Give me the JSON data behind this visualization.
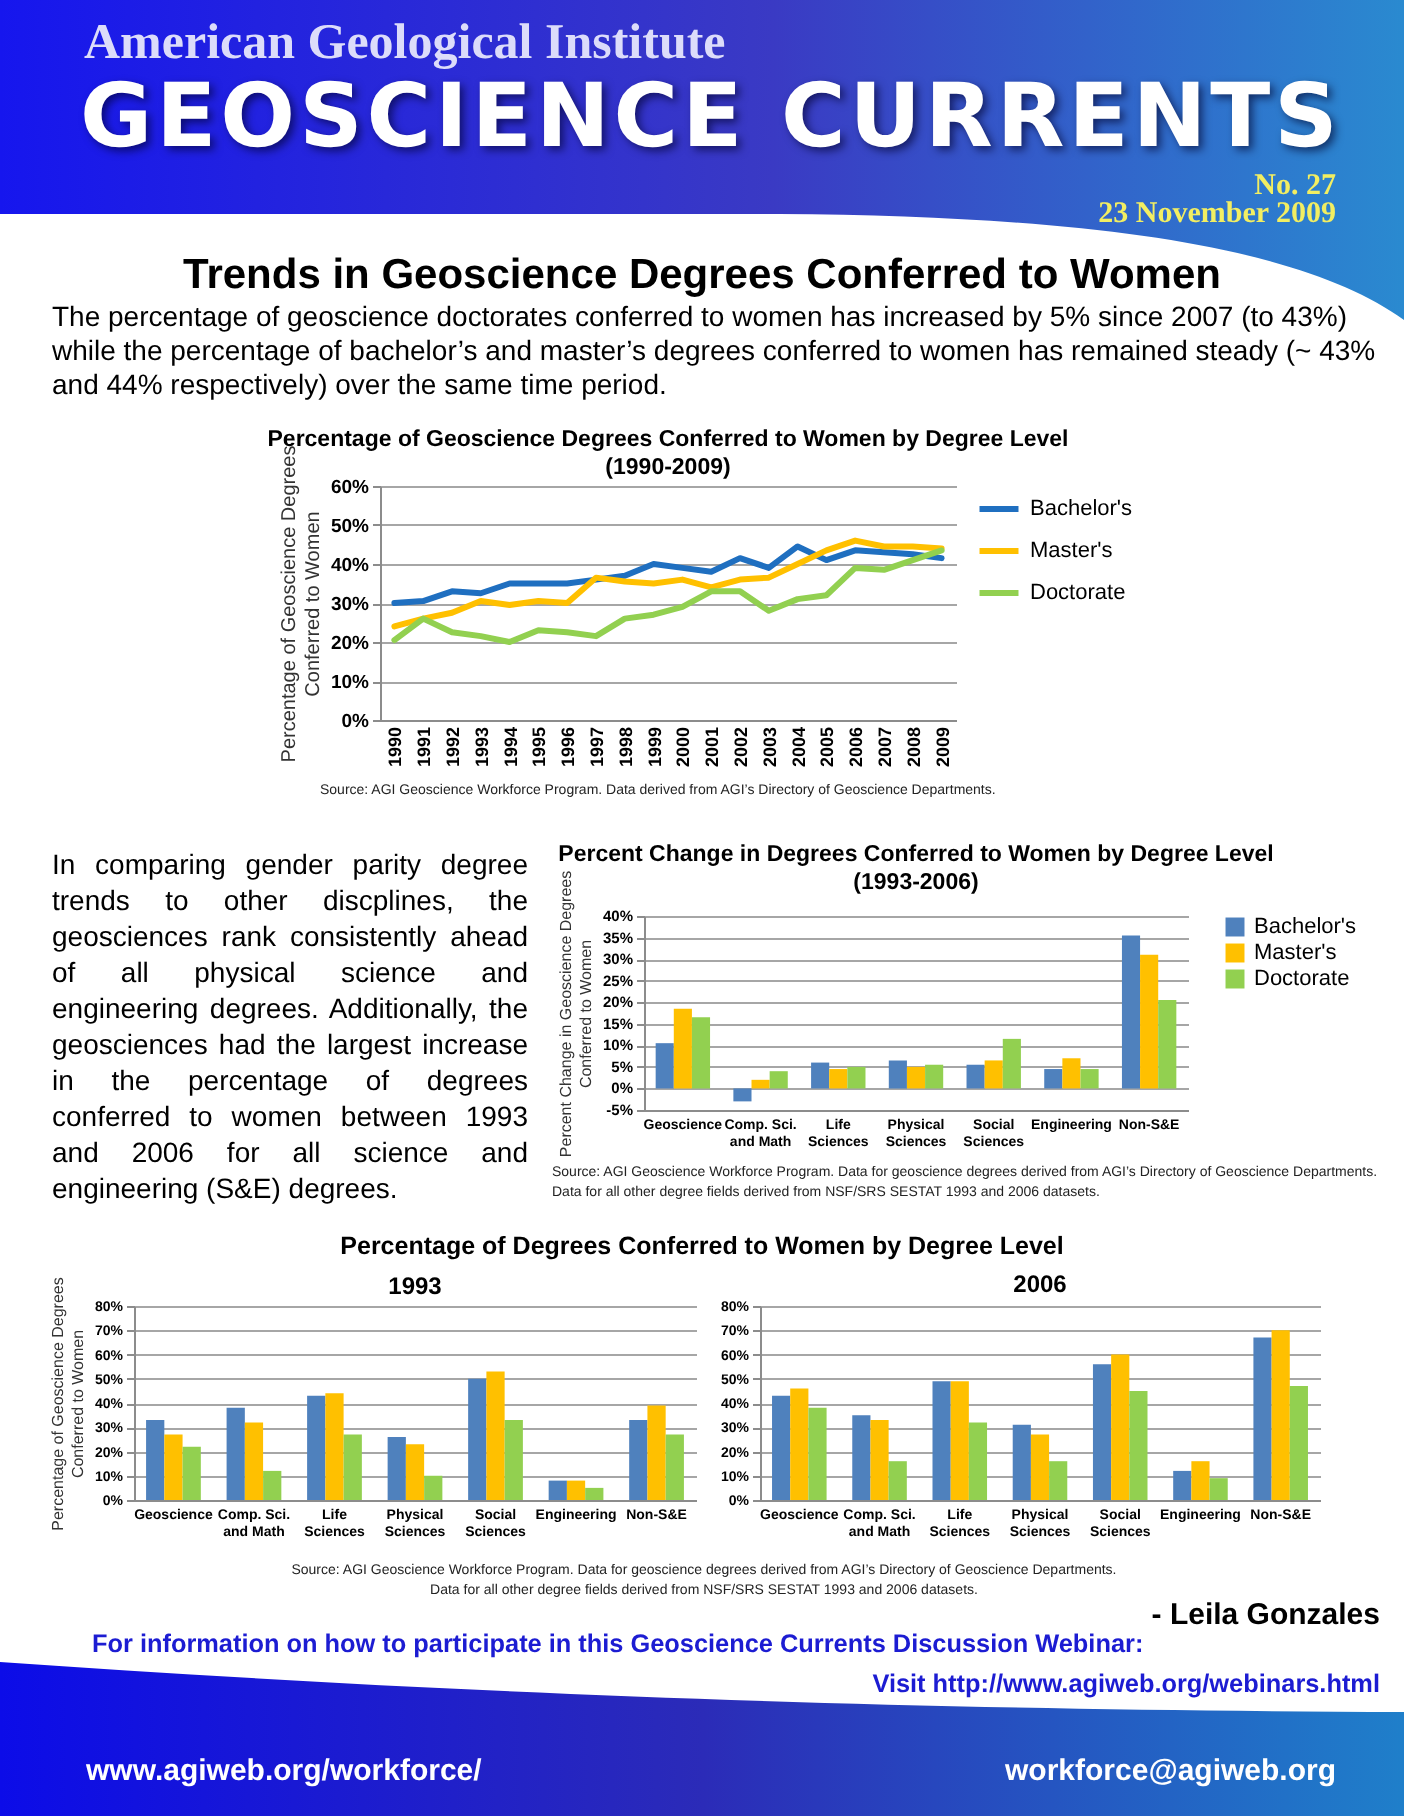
{
  "chart_data": [
    {
      "type": "other",
      "title": "Trends in Geoscience Degrees Conferred to Women",
      "annotations": [
        "American Geological Institute",
        "GEOSCIENCE CURRENTS",
        "No. 27",
        "23 November 2009",
        "The percentage of geoscience doctorates conferred to women has increased by 5% since 2007 (to 43%) while the percentage of bachelor’s and master’s degrees conferred to women has remained steady (~ 43% and 44% respectively) over the same time period."
      ]
    },
    {
      "type": "line",
      "title": "Percentage of Geoscience Degrees Conferred to Women by Degree Level (1990-2009)",
      "ylabel": "Percentage of Geoscience Degrees Conferred to Women",
      "categories": [
        "1990",
        "1991",
        "1992",
        "1993",
        "1994",
        "1995",
        "1996",
        "1997",
        "1998",
        "1999",
        "2000",
        "2001",
        "2002",
        "2003",
        "2004",
        "2005",
        "2006",
        "2007",
        "2008",
        "2009"
      ],
      "series": [
        {
          "name": "Bachelor's",
          "color": "#1f6fc0",
          "values": [
            30,
            30.5,
            33,
            32.5,
            35,
            35,
            35,
            36,
            37,
            40,
            39,
            38,
            41.5,
            39,
            44.5,
            41,
            43.5,
            43,
            42.5,
            41.5
          ]
        },
        {
          "name": "Master's",
          "color": "#ffc000",
          "values": [
            24,
            26,
            27.5,
            30.5,
            29.5,
            30.5,
            30,
            36.5,
            35.5,
            35,
            36,
            34,
            36,
            36.5,
            40,
            43.5,
            46,
            44.5,
            44.5,
            44
          ]
        },
        {
          "name": "Doctorate",
          "color": "#92d050",
          "values": [
            20.5,
            26,
            22.5,
            21.5,
            20,
            23,
            22.5,
            21.5,
            26,
            27,
            29,
            33,
            33,
            28,
            31,
            32,
            39,
            38.5,
            41,
            43.5
          ]
        }
      ],
      "ylim": [
        0,
        60
      ],
      "yticks": [
        {
          "value": 0,
          "label": "0%"
        },
        {
          "value": 10,
          "label": "10%"
        },
        {
          "value": 20,
          "label": "20%"
        },
        {
          "value": 30,
          "label": "30%"
        },
        {
          "value": 40,
          "label": "40%"
        },
        {
          "value": 50,
          "label": "50%"
        },
        {
          "value": 60,
          "label": "60%"
        }
      ],
      "grid": "y",
      "legend": "right",
      "annotations": [
        "Source: AGI Geoscience Workforce Program. Data derived from AGI’s Directory of Geoscience Departments."
      ]
    },
    {
      "type": "other",
      "annotations": [
        "In comparing gender parity degree trends to other discplines, the geosciences rank consistently ahead of all physical science and engineering degrees. Additionally, the geosciences had the largest increase in the percentage of degrees conferred to women between 1993 and 2006 for all science and engineering (S&E) degrees."
      ]
    },
    {
      "type": "bar",
      "title": "Percent Change in Degrees Conferred to Women by Degree Level (1993-2006)",
      "ylabel": "Percent Change in Geoscience Degrees Conferred to Women",
      "categories": [
        "Geoscience",
        "Comp. Sci. and Math",
        "Life Sciences",
        "Physical Sciences",
        "Social Sciences",
        "Engineering",
        "Non-S&E"
      ],
      "series": [
        {
          "name": "Bachelor's",
          "color": "#4f81bd",
          "values": [
            10.5,
            -3,
            6,
            6.5,
            5.5,
            4.5,
            35.5
          ]
        },
        {
          "name": "Master's",
          "color": "#ffc000",
          "values": [
            18.5,
            2,
            4.5,
            5,
            6.5,
            7,
            31
          ]
        },
        {
          "name": "Doctorate",
          "color": "#92d050",
          "values": [
            16.5,
            4,
            5,
            5.5,
            11.5,
            4.5,
            20.5
          ]
        }
      ],
      "ylim": [
        -5,
        40
      ],
      "yticks": [
        {
          "value": -5,
          "label": "-5%"
        },
        {
          "value": 0,
          "label": "0%"
        },
        {
          "value": 5,
          "label": "5%"
        },
        {
          "value": 10,
          "label": "10%"
        },
        {
          "value": 15,
          "label": "15%"
        },
        {
          "value": 20,
          "label": "20%"
        },
        {
          "value": 25,
          "label": "25%"
        },
        {
          "value": 30,
          "label": "30%"
        },
        {
          "value": 35,
          "label": "35%"
        },
        {
          "value": 40,
          "label": "40%"
        }
      ],
      "grid": "y",
      "legend": "right",
      "annotations": [
        "Source: AGI Geoscience Workforce Program. Data for geoscience degrees derived from AGI’s Directory of Geoscience Departments.",
        "Data for all other degree fields derived from NSF/SRS SESTAT 1993 and 2006 datasets."
      ]
    },
    {
      "type": "bar",
      "title": "Percentage of Degrees Conferred to Women by Degree Level",
      "subtitle": "1993",
      "ylabel": "Percentage of Geoscience Degrees Conferred to Women",
      "categories": [
        "Geoscience",
        "Comp. Sci. and Math",
        "Life Sciences",
        "Physical Sciences",
        "Social Sciences",
        "Engineering",
        "Non-S&E"
      ],
      "series": [
        {
          "color": "#4f81bd",
          "values": [
            33,
            38,
            43,
            26,
            50,
            8,
            33
          ]
        },
        {
          "color": "#ffc000",
          "values": [
            27,
            32,
            44,
            23,
            53,
            8,
            39
          ]
        },
        {
          "color": "#92d050",
          "values": [
            22,
            12,
            27,
            10,
            33,
            5,
            27
          ]
        }
      ],
      "ylim": [
        0,
        80
      ],
      "yticks": [
        {
          "value": 0,
          "label": "0%"
        },
        {
          "value": 10,
          "label": "10%"
        },
        {
          "value": 20,
          "label": "20%"
        },
        {
          "value": 30,
          "label": "30%"
        },
        {
          "value": 40,
          "label": "40%"
        },
        {
          "value": 50,
          "label": "50%"
        },
        {
          "value": 60,
          "label": "60%"
        },
        {
          "value": 70,
          "label": "70%"
        },
        {
          "value": 80,
          "label": "80%"
        }
      ],
      "grid": "y",
      "annotations": [
        "Source: AGI Geoscience Workforce Program. Data for geoscience degrees derived from AGI’s Directory of Geoscience Departments.",
        "Data for all other degree fields derived from NSF/SRS SESTAT 1993 and 2006 datasets."
      ]
    },
    {
      "type": "bar",
      "title": "2006",
      "categories": [
        "Geoscience",
        "Comp. Sci. and Math",
        "Life Sciences",
        "Physical Sciences",
        "Social Sciences",
        "Engineering",
        "Non-S&E"
      ],
      "series": [
        {
          "color": "#4f81bd",
          "values": [
            43,
            35,
            49,
            31,
            56,
            12,
            67
          ]
        },
        {
          "color": "#ffc000",
          "values": [
            46,
            33,
            49,
            27,
            60,
            16,
            70
          ]
        },
        {
          "color": "#92d050",
          "values": [
            38,
            16,
            32,
            16,
            45,
            9,
            47
          ]
        }
      ],
      "ylim": [
        0,
        80
      ],
      "yticks": [
        {
          "value": 0,
          "label": "0%"
        },
        {
          "value": 10,
          "label": "10%"
        },
        {
          "value": 20,
          "label": "20%"
        },
        {
          "value": 30,
          "label": "30%"
        },
        {
          "value": 40,
          "label": "40%"
        },
        {
          "value": 50,
          "label": "50%"
        },
        {
          "value": 60,
          "label": "60%"
        },
        {
          "value": 70,
          "label": "70%"
        },
        {
          "value": 80,
          "label": "80%"
        }
      ],
      "grid": "y"
    },
    {
      "type": "other",
      "annotations": [
        "- Leila Gonzales",
        "For information on how to participate in this Geoscience Currents Discussion Webinar:",
        "Visit http://www.agiweb.org/webinars.html",
        "www.agiweb.org/workforce/",
        "workforce@agiweb.org"
      ]
    }
  ]
}
